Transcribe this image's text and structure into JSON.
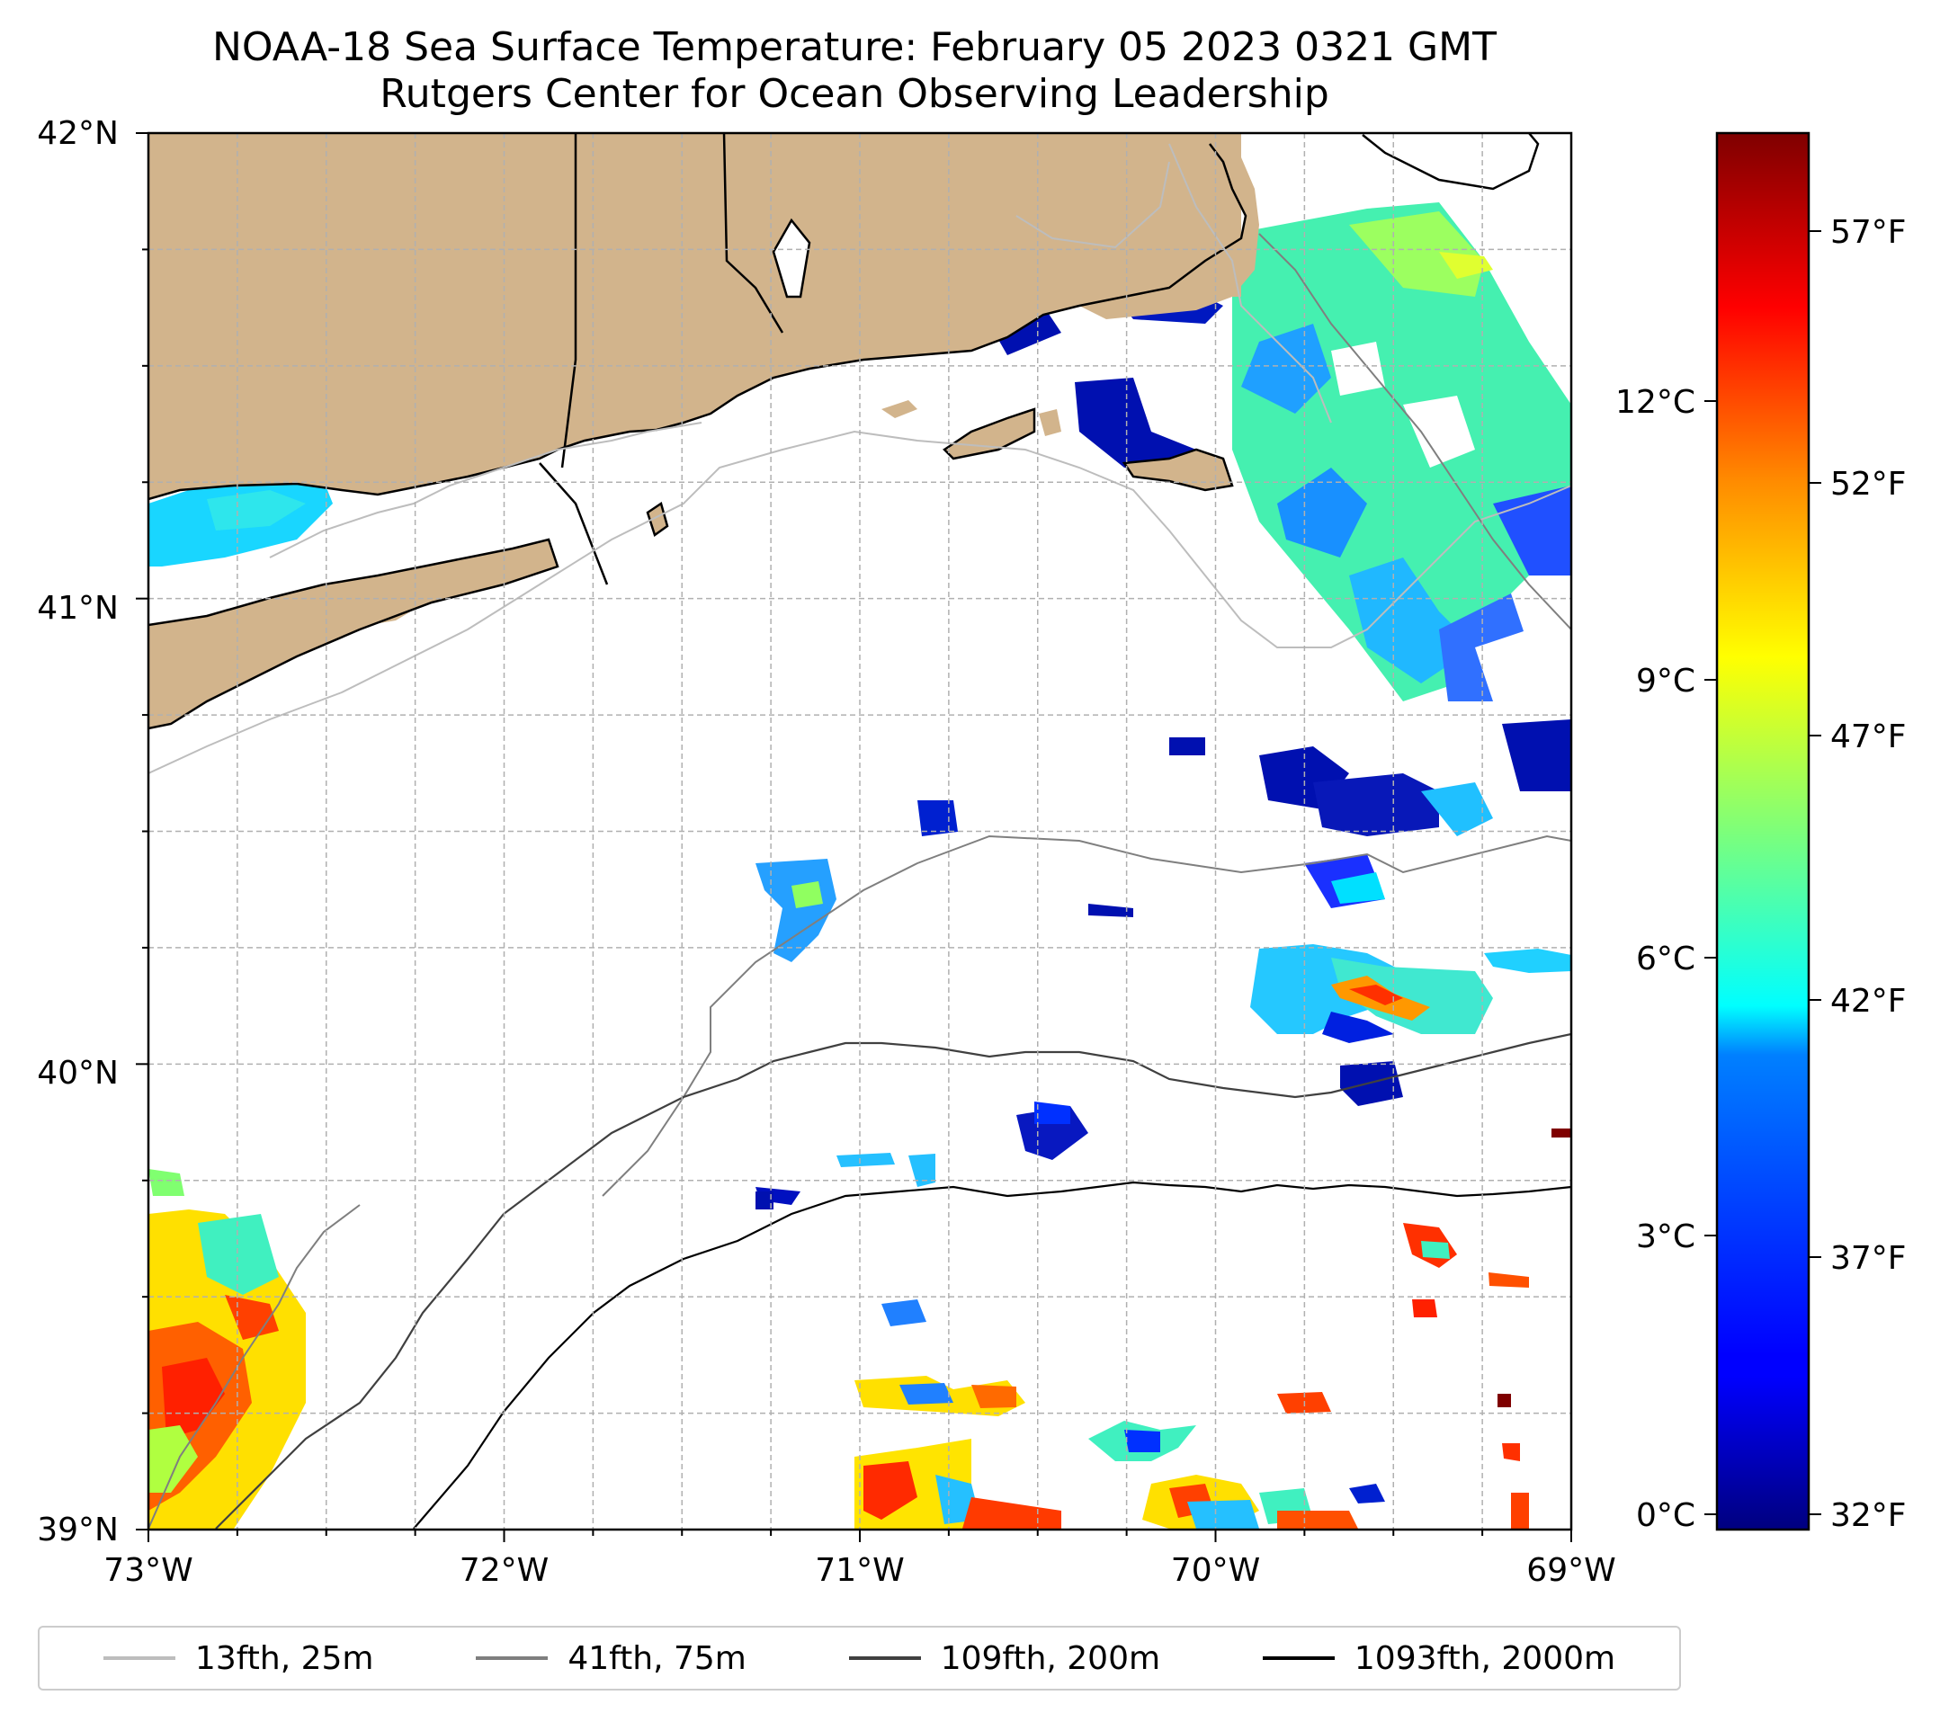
{
  "title": {
    "line1": "NOAA-18 Sea Surface Temperature: February 05 2023 0321 GMT",
    "line2": "Rutgers Center for Ocean Observing Leadership"
  },
  "map": {
    "lon_range": [
      -73,
      -69
    ],
    "lat_range": [
      39,
      42
    ],
    "x_ticks": [
      "73°W",
      "72°W",
      "71°W",
      "70°W",
      "69°W"
    ],
    "y_ticks": [
      "42°N",
      "41°N",
      "40°N",
      "39°N"
    ],
    "gridlines": true,
    "land_color": "#d2b48c",
    "coastline_color": "#000000"
  },
  "colorbar": {
    "colormap": "jet",
    "celsius_ticks": [
      "12°C",
      "9°C",
      "6°C",
      "3°C",
      "0°C"
    ],
    "fahrenheit_ticks": [
      "57°F",
      "52°F",
      "47°F",
      "42°F",
      "37°F",
      "32°F"
    ]
  },
  "legend": {
    "placement": "bottom",
    "items": [
      {
        "label": "13fth, 25m",
        "color": "#bdbdbd"
      },
      {
        "label": "41fth, 75m",
        "color": "#7f7f7f"
      },
      {
        "label": "109fth, 200m",
        "color": "#404040"
      },
      {
        "label": "1093fth, 2000m",
        "color": "#000000"
      }
    ]
  }
}
